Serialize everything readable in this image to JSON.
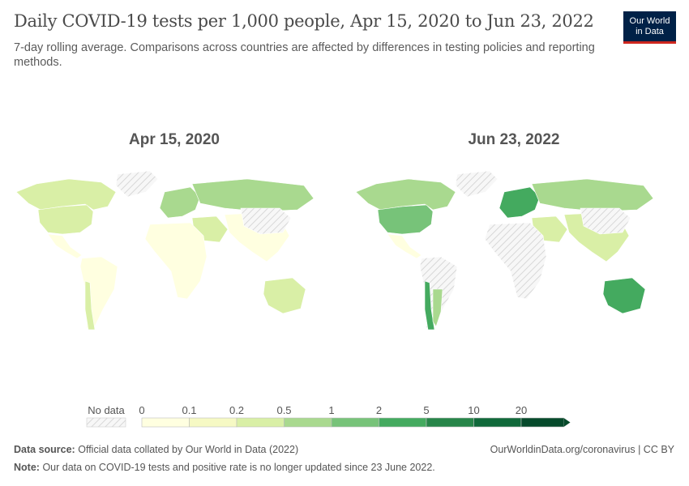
{
  "header": {
    "title": "Daily COVID-19 tests per 1,000 people, Apr 15, 2020 to Jun 23, 2022",
    "subtitle": "7-day rolling average. Comparisons across countries are affected by differences in testing policies and reporting methods.",
    "logo_line1": "Our World",
    "logo_line2": "in Data"
  },
  "maps": [
    {
      "title": "Apr 15, 2020"
    },
    {
      "title": "Jun 23, 2022"
    }
  ],
  "legend": {
    "no_data_label": "No data",
    "bins": [
      "0",
      "0.1",
      "0.2",
      "0.5",
      "1",
      "2",
      "5",
      "10",
      "20"
    ],
    "colors": [
      "#ffffe0",
      "#f6f9c4",
      "#d9efa6",
      "#a9d98f",
      "#77c379",
      "#44aa5f",
      "#278549",
      "#10693a",
      "#064a2b"
    ]
  },
  "footer": {
    "source_label": "Data source:",
    "source_text": "Official data collated by Our World in Data (2022)",
    "note_label": "Note:",
    "note_text": "Our data on COVID-19 tests and positive rate is no longer updated since 23 June 2022.",
    "url": "OurWorldinData.org/coronavirus | CC BY"
  },
  "regions_2020": {
    "north_america": "#d9efa6",
    "usa": "#d9efa6",
    "mexico": "#ffffe0",
    "south_america": "#ffffe0",
    "chile": "#d9efa6",
    "greenland": "no-data",
    "europe": "#a9d98f",
    "russia": "#a9d98f",
    "africa": "#ffffe0",
    "middle_east": "#d9efa6",
    "asia": "#ffffe0",
    "china": "no-data",
    "australia": "#d9efa6"
  },
  "regions_2022": {
    "north_america": "#a9d98f",
    "usa": "#77c379",
    "mexico": "#ffffe0",
    "south_america": "no-data",
    "chile": "#44aa5f",
    "argentina": "#a9d98f",
    "greenland": "no-data",
    "europe": "#44aa5f",
    "russia": "#a9d98f",
    "africa": "no-data",
    "middle_east": "#d9efa6",
    "asia": "#d9efa6",
    "china": "no-data",
    "australia": "#44aa5f"
  }
}
